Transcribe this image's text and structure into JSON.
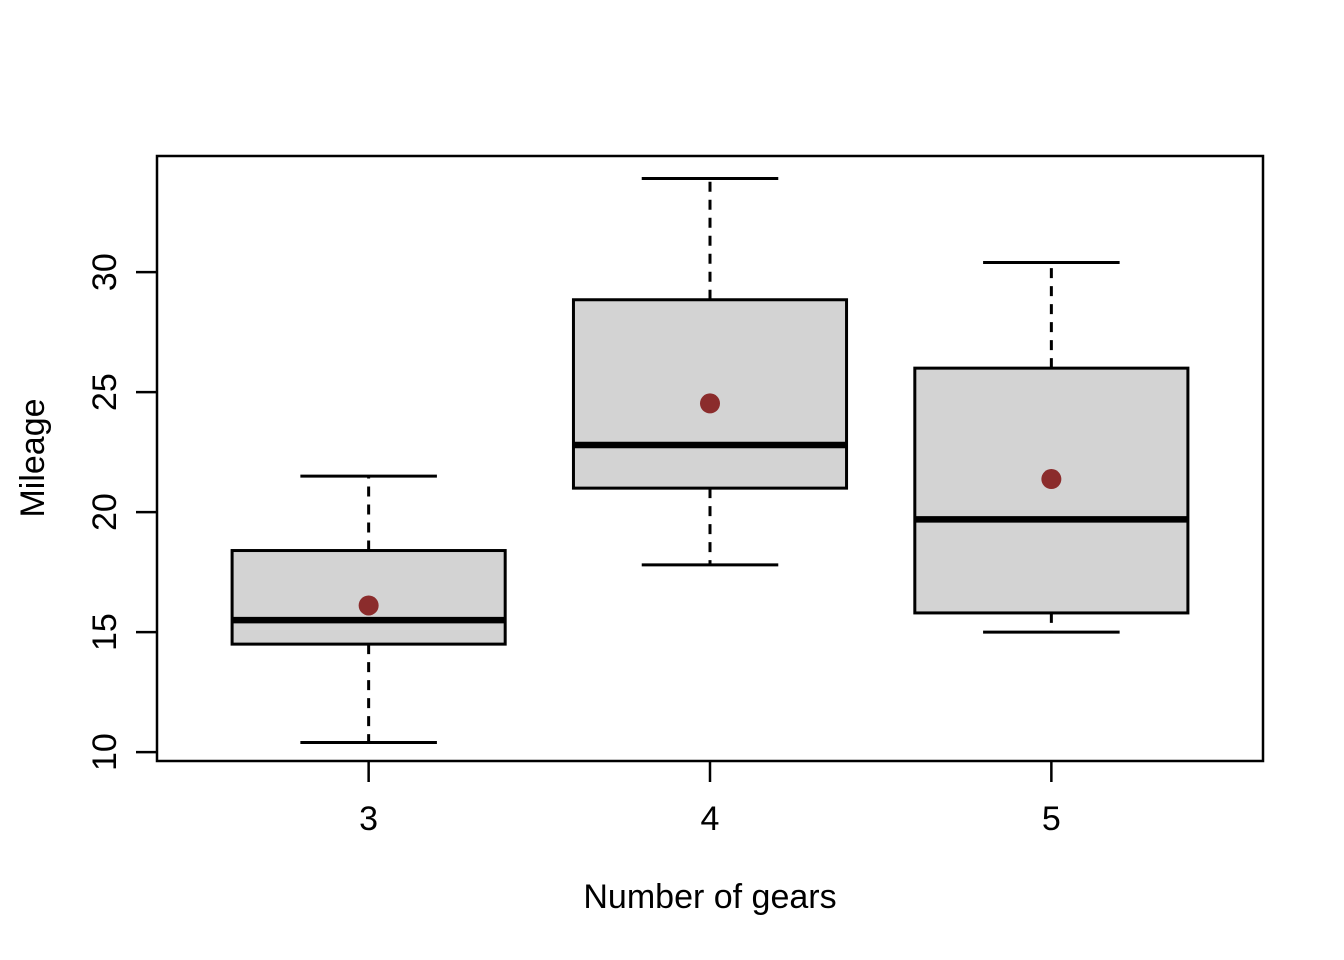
{
  "chart_data": {
    "type": "boxplot",
    "title": "",
    "xlabel": "Number of gears",
    "ylabel": "Mileage",
    "categories": [
      "3",
      "4",
      "5"
    ],
    "yticks": [
      10,
      15,
      20,
      25,
      30
    ],
    "ylim": [
      9.63,
      34.84
    ],
    "xlim_units": [
      0.38,
      3.62
    ],
    "grid": false,
    "legend": null,
    "series": [
      {
        "category": "3",
        "position": 1,
        "min": 10.4,
        "q1": 14.5,
        "median": 15.5,
        "q3": 18.4,
        "max": 21.5,
        "mean": 16.11
      },
      {
        "category": "4",
        "position": 2,
        "min": 17.8,
        "q1": 21.0,
        "median": 22.8,
        "q3": 28.85,
        "max": 33.9,
        "mean": 24.53
      },
      {
        "category": "5",
        "position": 3,
        "min": 15.0,
        "q1": 15.8,
        "median": 19.7,
        "q3": 26.0,
        "max": 30.4,
        "mean": 21.38
      }
    ],
    "style": {
      "background": "#ffffff",
      "box_fill": "#d3d3d3",
      "box_border": "#000000",
      "median_color": "#000000",
      "whisker_color": "#000000",
      "whisker_style": "dashed",
      "mean_point_color": "#8b2c2c",
      "axis_color": "#000000",
      "text_color": "#000000"
    }
  }
}
